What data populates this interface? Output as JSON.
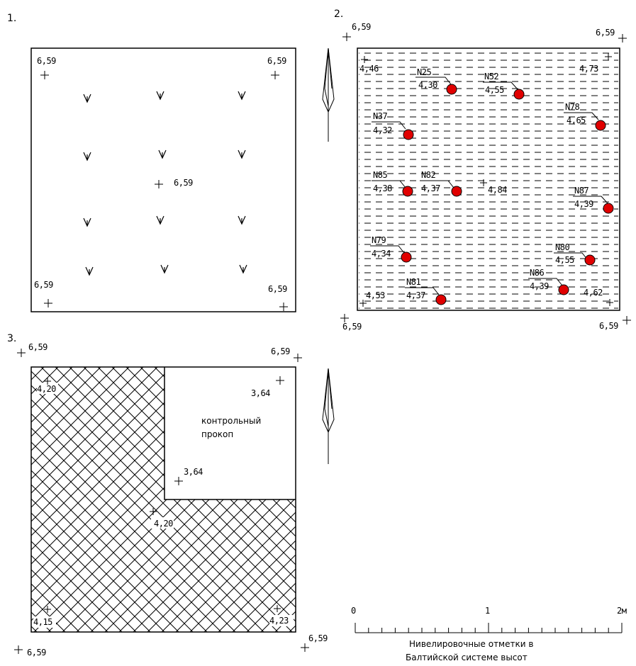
{
  "panels": {
    "p1": {
      "number": "1.",
      "corners": [
        "6,59",
        "6,59",
        "6,59",
        "6,59"
      ],
      "center": "6,59"
    },
    "p2": {
      "number": "2.",
      "corners": [
        "6,59",
        "6,59",
        "6,59",
        "6,59"
      ],
      "inner_marks": [
        "4,46",
        "4,73",
        "4,53",
        "4,62"
      ],
      "center_mark": "4,84",
      "wells": [
        {
          "id": "N25",
          "value": "4,30"
        },
        {
          "id": "N52",
          "value": "4,55"
        },
        {
          "id": "N78",
          "value": "4,65"
        },
        {
          "id": "N37",
          "value": "4,32"
        },
        {
          "id": "N85",
          "value": "4,38"
        },
        {
          "id": "N82",
          "value": "4,37"
        },
        {
          "id": "N87",
          "value": "4,39"
        },
        {
          "id": "N79",
          "value": "4,34"
        },
        {
          "id": "N80",
          "value": "4,55"
        },
        {
          "id": "N86",
          "value": "4,39"
        },
        {
          "id": "N81",
          "value": "4,37"
        }
      ],
      "well_color": "#e00000"
    },
    "p3": {
      "number": "3.",
      "corners": [
        "6,59",
        "6,59",
        "6,59",
        "6,59"
      ],
      "inner_marks": [
        "4,20",
        "4,15",
        "4,23"
      ],
      "center_mark": "4,20",
      "pit_marks": [
        "3,64",
        "3,64"
      ],
      "pit_label_1": "контрольный",
      "pit_label_2": "прокоп"
    }
  },
  "scale": {
    "tick_labels": [
      "0",
      "1",
      "2м"
    ],
    "caption_line1": "Нивелировочные отметки в",
    "caption_line2": "Балтийской системе высот"
  }
}
